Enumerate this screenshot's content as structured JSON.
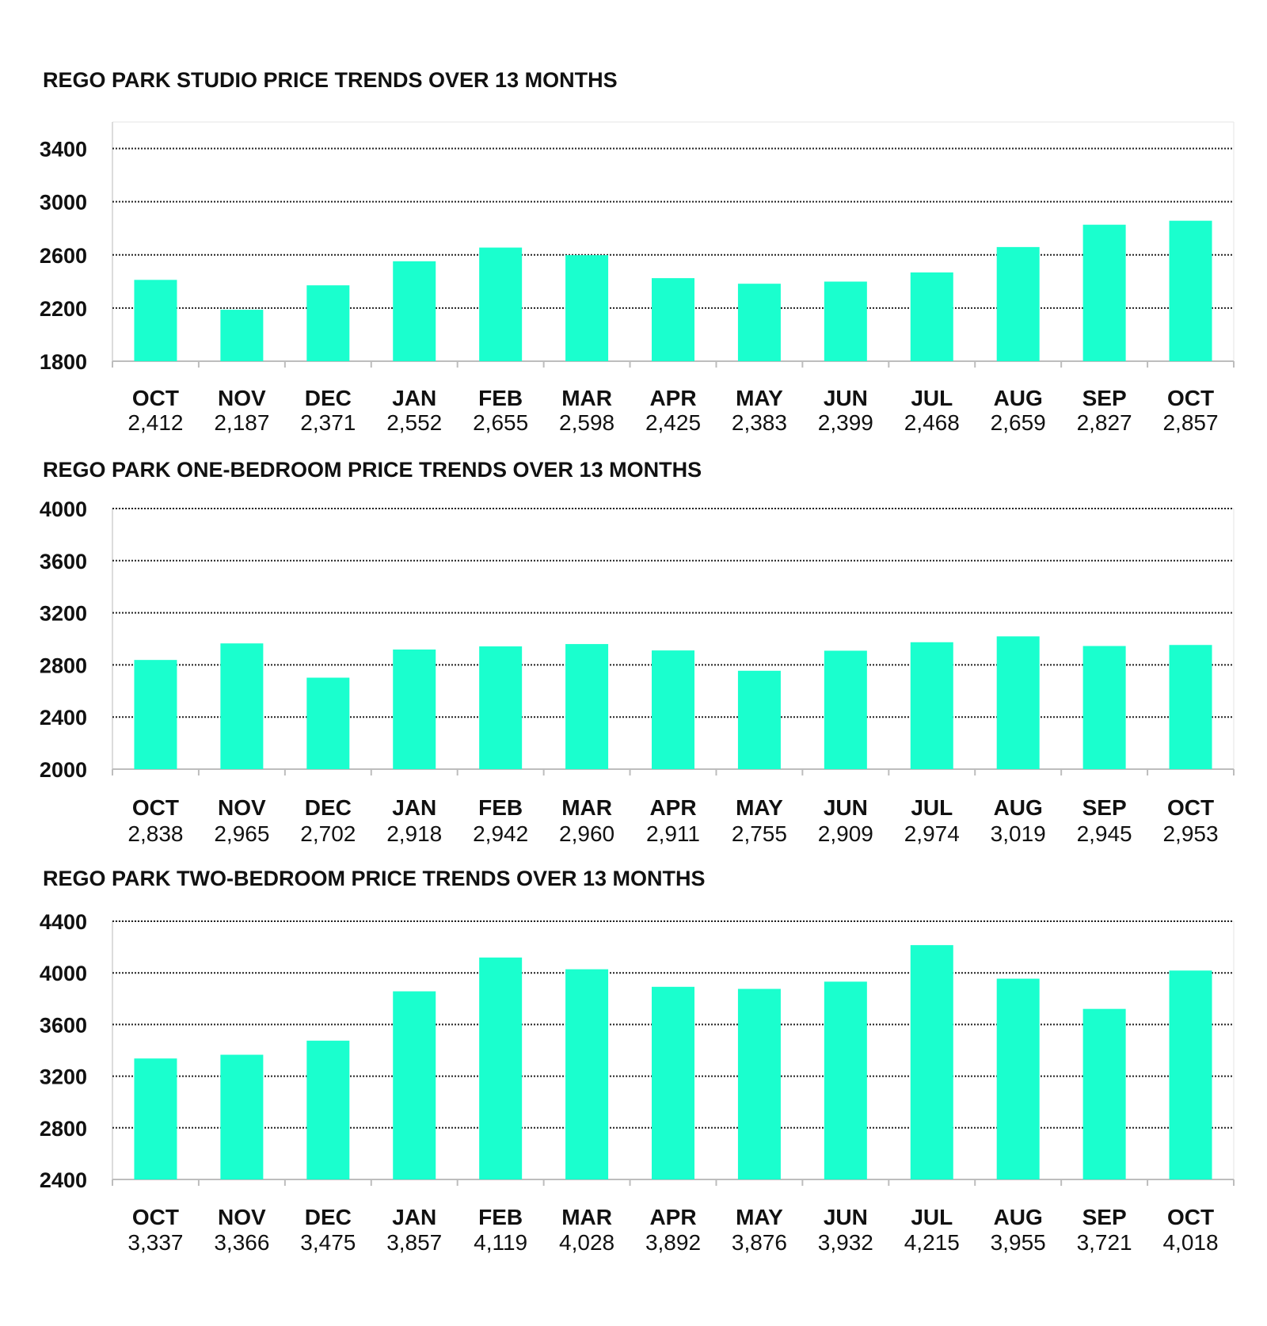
{
  "chart_data": [
    {
      "type": "bar",
      "title": "REGO PARK STUDIO PRICE TRENDS OVER 13 MONTHS",
      "categories": [
        "OCT",
        "NOV",
        "DEC",
        "JAN",
        "FEB",
        "MAR",
        "APR",
        "MAY",
        "JUN",
        "JUL",
        "AUG",
        "SEP",
        "OCT"
      ],
      "values": [
        2412,
        2187,
        2371,
        2552,
        2655,
        2598,
        2425,
        2383,
        2399,
        2468,
        2659,
        2827,
        2857
      ],
      "value_labels": [
        "2,412",
        "2,187",
        "2,371",
        "2,552",
        "2,655",
        "2,598",
        "2,425",
        "2,383",
        "2,399",
        "2,468",
        "2,659",
        "2,827",
        "2,857"
      ],
      "yticks": [
        1800,
        2200,
        2600,
        3000,
        3400
      ],
      "ylim": [
        1800,
        3600
      ],
      "xlabel": "",
      "ylabel": "",
      "grid": true,
      "bar_color": "#1affce"
    },
    {
      "type": "bar",
      "title": "REGO PARK ONE-BEDROOM PRICE TRENDS OVER 13 MONTHS",
      "categories": [
        "OCT",
        "NOV",
        "DEC",
        "JAN",
        "FEB",
        "MAR",
        "APR",
        "MAY",
        "JUN",
        "JUL",
        "AUG",
        "SEP",
        "OCT"
      ],
      "values": [
        2838,
        2965,
        2702,
        2918,
        2942,
        2960,
        2911,
        2755,
        2909,
        2974,
        3019,
        2945,
        2953
      ],
      "value_labels": [
        "2,838",
        "2,965",
        "2,702",
        "2,918",
        "2,942",
        "2,960",
        "2,911",
        "2,755",
        "2,909",
        "2,974",
        "3,019",
        "2,945",
        "2,953"
      ],
      "yticks": [
        2000,
        2400,
        2800,
        3200,
        3600,
        4000
      ],
      "ylim": [
        2000,
        4000
      ],
      "xlabel": "",
      "ylabel": "",
      "grid": true,
      "bar_color": "#1affce"
    },
    {
      "type": "bar",
      "title": "REGO PARK TWO-BEDROOM PRICE TRENDS OVER 13 MONTHS",
      "categories": [
        "OCT",
        "NOV",
        "DEC",
        "JAN",
        "FEB",
        "MAR",
        "APR",
        "MAY",
        "JUN",
        "JUL",
        "AUG",
        "SEP",
        "OCT"
      ],
      "values": [
        3337,
        3366,
        3475,
        3857,
        4119,
        4028,
        3892,
        3876,
        3932,
        4215,
        3955,
        3721,
        4018
      ],
      "value_labels": [
        "3,337",
        "3,366",
        "3,475",
        "3,857",
        "4,119",
        "4,028",
        "3,892",
        "3,876",
        "3,932",
        "4,215",
        "3,955",
        "3,721",
        "4,018"
      ],
      "yticks": [
        2400,
        2800,
        3200,
        3600,
        4000,
        4400
      ],
      "ylim": [
        2400,
        4400
      ],
      "xlabel": "",
      "ylabel": "",
      "grid": true,
      "bar_color": "#1affce"
    }
  ]
}
